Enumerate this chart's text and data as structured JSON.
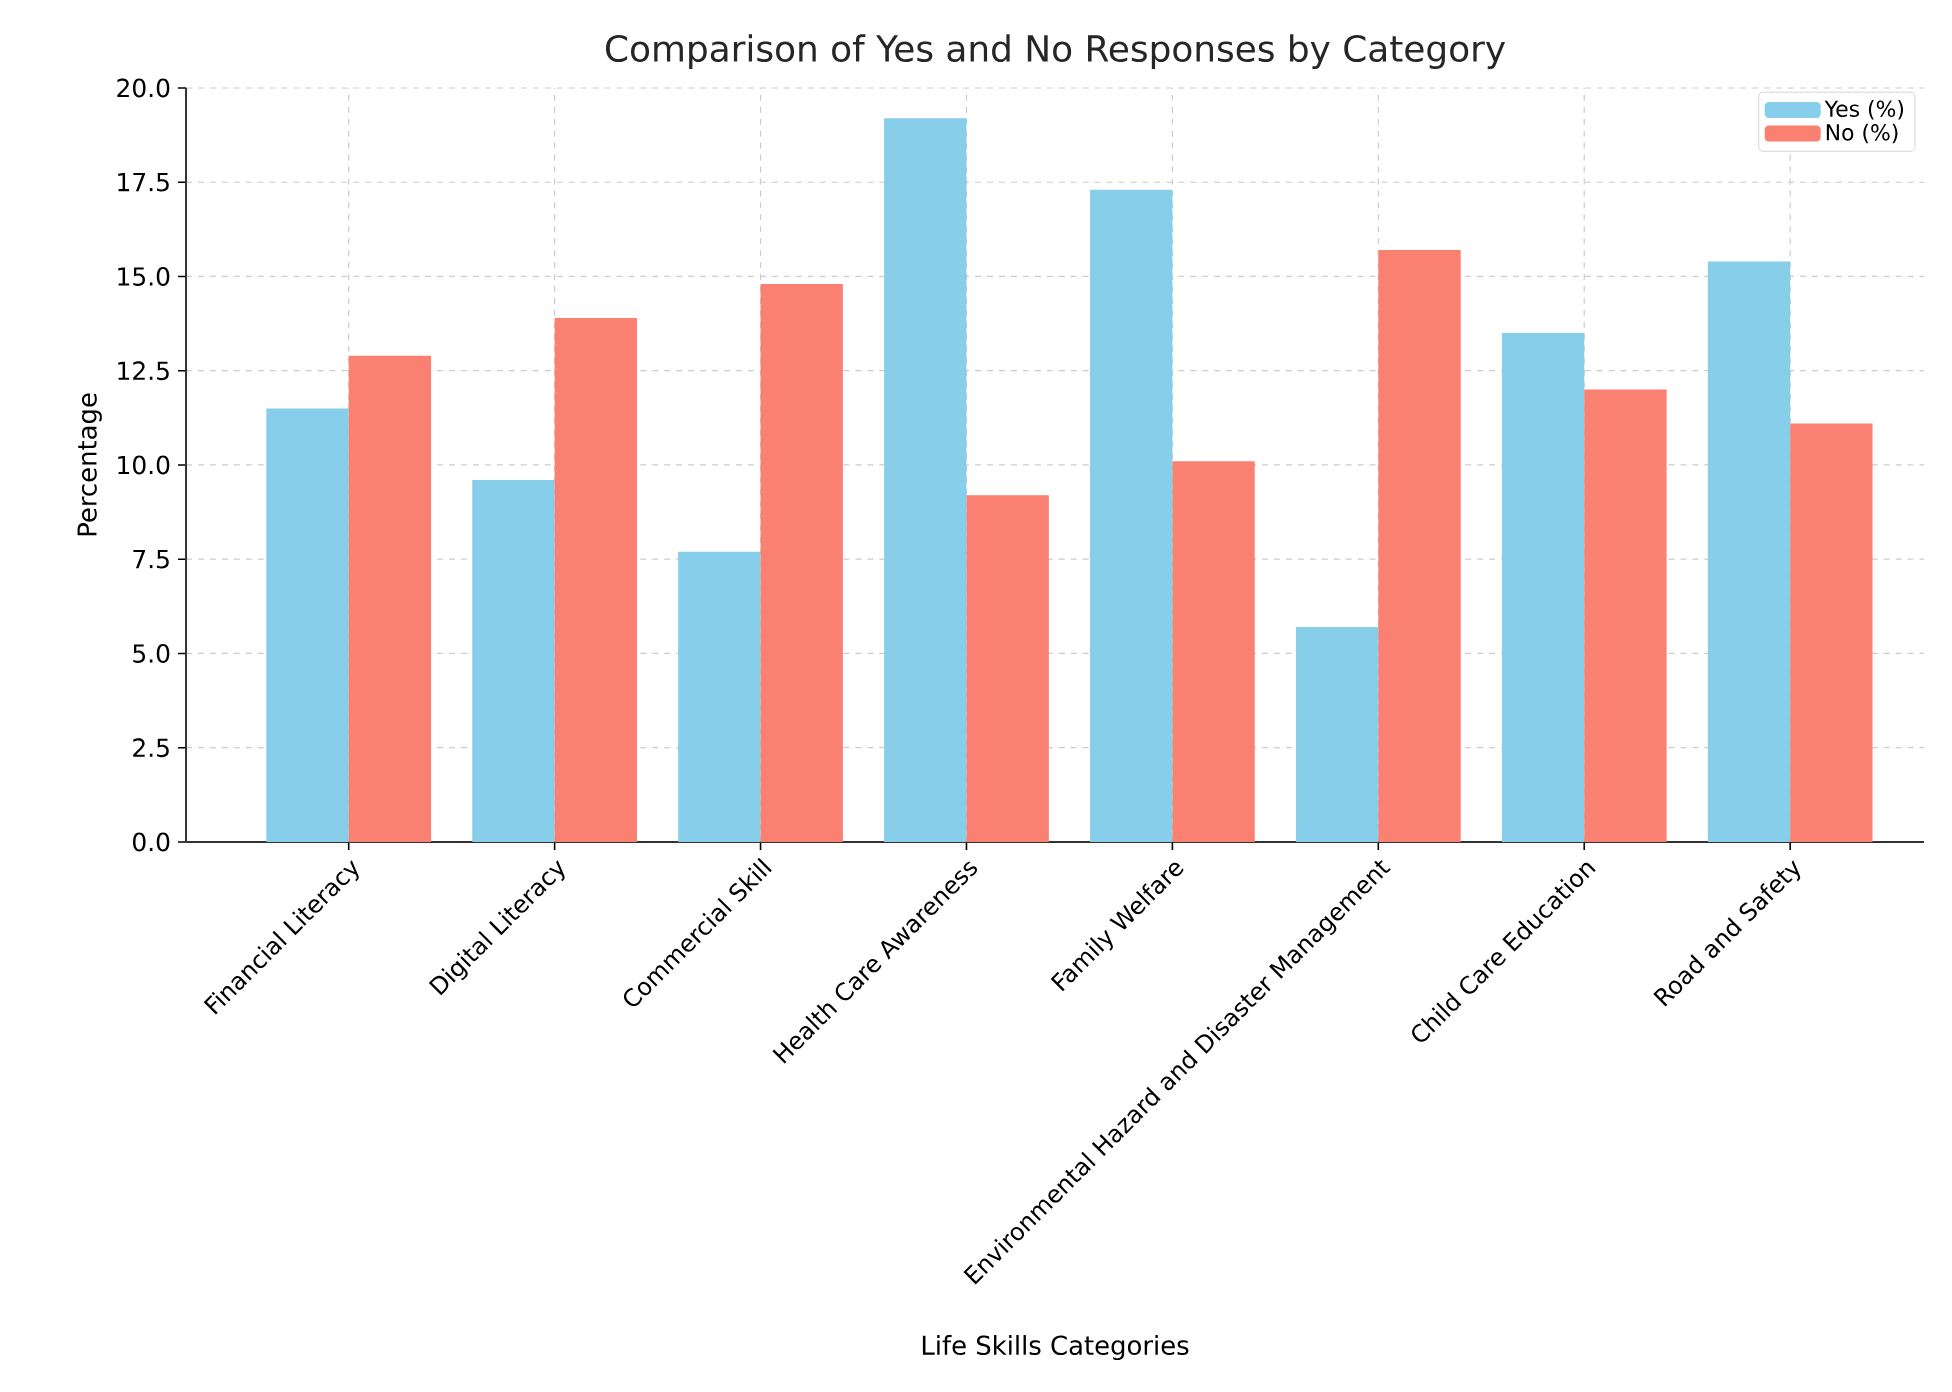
{
  "chart_data": {
    "type": "bar",
    "title": "Comparison of Yes and No Responses by Category",
    "xlabel": "Life Skills Categories",
    "ylabel": "Percentage",
    "categories": [
      "Financial Literacy",
      "Digital Literacy",
      "Commercial Skill",
      "Health Care Awareness",
      "Family Welfare",
      "Environmental Hazard and Disaster Management",
      "Child Care Education",
      "Road and Safety"
    ],
    "series": [
      {
        "name": "Yes (%)",
        "color": "#87ceeb",
        "values": [
          11.5,
          9.6,
          7.7,
          19.2,
          17.3,
          5.7,
          13.5,
          15.4
        ]
      },
      {
        "name": "No (%)",
        "color": "#fa8072",
        "values": [
          12.9,
          13.9,
          14.8,
          9.2,
          10.1,
          15.7,
          12.0,
          11.1
        ]
      }
    ],
    "ylim": [
      0,
      20
    ],
    "yticks": [
      {
        "value": 0,
        "label": "0.0"
      },
      {
        "value": 2.5,
        "label": "2.5"
      },
      {
        "value": 5,
        "label": "5.0"
      },
      {
        "value": 7.5,
        "label": "7.5"
      },
      {
        "value": 10,
        "label": "10.0"
      },
      {
        "value": 12.5,
        "label": "12.5"
      },
      {
        "value": 15,
        "label": "15.0"
      },
      {
        "value": 17.5,
        "label": "17.5"
      },
      {
        "value": 20,
        "label": "20.0"
      }
    ],
    "grid": true,
    "legend": "top right"
  }
}
